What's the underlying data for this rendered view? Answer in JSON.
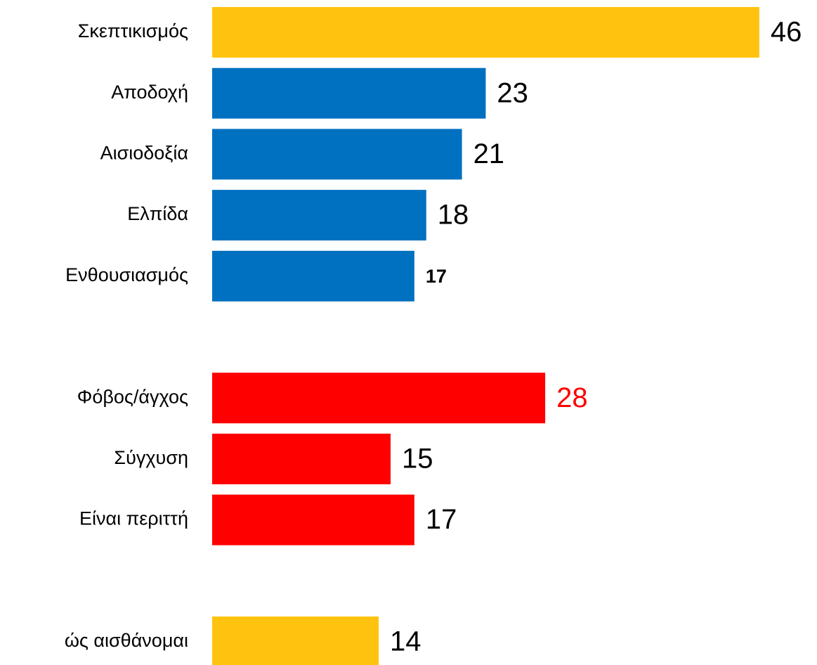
{
  "chart_data": {
    "type": "bar",
    "orientation": "horizontal",
    "categories": [
      "Σκεπτικισμός",
      "Αποδοχή",
      "Αισιοδοξία",
      "Ελπίδα",
      "Ενθουσιασμός",
      "Φόβος/άγχος",
      "Σύγχυση",
      "Είναι περιττή",
      "ώς αισθάνομαι"
    ],
    "values": [
      46,
      23,
      21,
      18,
      17,
      28,
      15,
      17,
      14
    ],
    "colors": [
      "#FFC30F",
      "#0070C0",
      "#0070C0",
      "#0070C0",
      "#0070C0",
      "#FF0000",
      "#FF0000",
      "#FF0000",
      "#FFC30F"
    ],
    "value_label_colors": [
      "#000000",
      "#000000",
      "#000000",
      "#000000",
      "#000000",
      "#FF0000",
      "#000000",
      "#000000",
      "#000000"
    ],
    "xlim": [
      0,
      50
    ]
  }
}
